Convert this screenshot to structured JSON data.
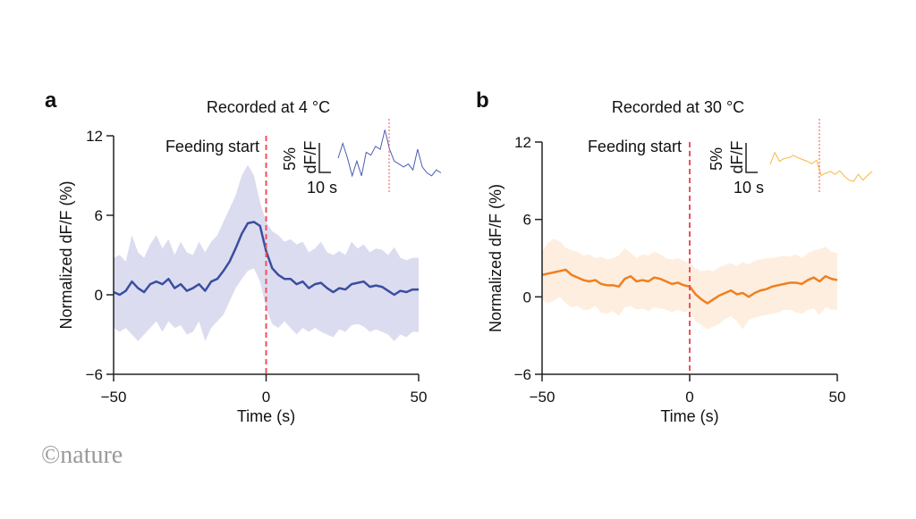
{
  "logo": "©nature",
  "colors": {
    "blue": "#3a4ea0",
    "blue_band": "#dcdcf0",
    "blue_inset": "#4a5cb0",
    "orange": "#f07f1e",
    "orange_band": "#fdeee0",
    "orange_inset": "#f5b840",
    "feeding_line": "#f0505a"
  },
  "chart_data": [
    {
      "panel": "a",
      "type": "line",
      "title": "Recorded at 4 °C",
      "xlabel": "Time (s)",
      "ylabel": "Normalized dF/F (%)",
      "xlim": [
        -50,
        50
      ],
      "ylim": [
        -6,
        12
      ],
      "xticks": [
        "−50",
        "0",
        "50"
      ],
      "yticks": [
        "12",
        "6",
        "0",
        "−6"
      ],
      "annotation": "Feeding start",
      "event_x": 0,
      "x": [
        -50,
        -48,
        -46,
        -44,
        -42,
        -40,
        -38,
        -36,
        -34,
        -32,
        -30,
        -28,
        -26,
        -24,
        -22,
        -20,
        -18,
        -16,
        -14,
        -12,
        -10,
        -8,
        -6,
        -4,
        -2,
        0,
        2,
        4,
        6,
        8,
        10,
        12,
        14,
        16,
        18,
        20,
        22,
        24,
        26,
        28,
        30,
        32,
        34,
        36,
        38,
        40,
        42,
        44,
        46,
        48,
        50
      ],
      "mean": [
        0.2,
        0.0,
        0.3,
        1.0,
        0.5,
        0.2,
        0.8,
        1.0,
        0.8,
        1.2,
        0.5,
        0.8,
        0.3,
        0.5,
        0.8,
        0.3,
        1.0,
        1.2,
        1.8,
        2.5,
        3.5,
        4.6,
        5.4,
        5.5,
        5.2,
        3.3,
        2.0,
        1.5,
        1.2,
        1.2,
        0.8,
        1.0,
        0.5,
        0.8,
        0.9,
        0.5,
        0.2,
        0.5,
        0.4,
        0.8,
        0.9,
        1.0,
        0.6,
        0.7,
        0.6,
        0.3,
        0.0,
        0.3,
        0.2,
        0.4,
        0.4
      ],
      "upper": [
        2.8,
        3.0,
        2.5,
        4.5,
        3.2,
        2.8,
        3.8,
        4.5,
        3.5,
        4.2,
        3.0,
        4.0,
        3.2,
        3.0,
        4.0,
        3.2,
        4.0,
        4.5,
        5.5,
        6.5,
        7.5,
        9.0,
        9.8,
        9.0,
        7.0,
        5.5,
        4.8,
        4.5,
        4.0,
        4.2,
        3.8,
        4.0,
        3.2,
        3.5,
        4.0,
        3.2,
        3.0,
        3.3,
        3.0,
        4.0,
        3.5,
        3.8,
        3.2,
        3.5,
        3.4,
        3.0,
        3.6,
        2.8,
        2.6,
        2.8,
        2.8
      ],
      "lower": [
        -2.5,
        -2.8,
        -2.5,
        -3.0,
        -3.5,
        -3.0,
        -2.5,
        -2.0,
        -2.8,
        -2.0,
        -2.5,
        -2.3,
        -3.0,
        -2.8,
        -2.0,
        -3.5,
        -2.5,
        -2.0,
        -1.5,
        -0.5,
        0.5,
        1.2,
        1.8,
        2.0,
        1.0,
        -1.0,
        -2.2,
        -2.5,
        -2.0,
        -2.5,
        -3.0,
        -2.5,
        -2.8,
        -2.5,
        -2.8,
        -3.0,
        -3.2,
        -2.6,
        -2.8,
        -2.3,
        -2.2,
        -2.4,
        -2.8,
        -2.6,
        -2.8,
        -3.0,
        -3.5,
        -3.0,
        -3.2,
        -2.8,
        -2.8
      ],
      "inset": {
        "scale_y_label": "5%",
        "scale_y_unit": "dF/F",
        "scale_x_label": "10 s",
        "event_t": 44,
        "t": [
          0,
          4,
          8,
          12,
          16,
          20,
          24,
          28,
          32,
          36,
          40,
          44,
          48,
          52,
          56,
          60,
          64,
          68,
          72,
          76,
          80,
          84,
          88
        ],
        "values": [
          5.0,
          7.5,
          5.0,
          2.0,
          4.5,
          2.0,
          6.0,
          5.5,
          7.0,
          6.5,
          9.8,
          6.5,
          4.5,
          4.0,
          3.5,
          4.0,
          3.0,
          6.5,
          3.5,
          2.5,
          2.0,
          3.0,
          2.5
        ]
      }
    },
    {
      "panel": "b",
      "type": "line",
      "title": "Recorded at 30 °C",
      "xlabel": "Time (s)",
      "ylabel": "Normalized dF/F (%)",
      "xlim": [
        -50,
        50
      ],
      "ylim": [
        -6,
        12
      ],
      "xticks": [
        "−50",
        "0",
        "50"
      ],
      "yticks": [
        "12",
        "6",
        "0",
        "−6"
      ],
      "annotation": "Feeding start",
      "event_x": 0,
      "x": [
        -50,
        -48,
        -46,
        -44,
        -42,
        -40,
        -38,
        -36,
        -34,
        -32,
        -30,
        -28,
        -26,
        -24,
        -22,
        -20,
        -18,
        -16,
        -14,
        -12,
        -10,
        -8,
        -6,
        -4,
        -2,
        0,
        2,
        4,
        6,
        8,
        10,
        12,
        14,
        16,
        18,
        20,
        22,
        24,
        26,
        28,
        30,
        32,
        34,
        36,
        38,
        40,
        42,
        44,
        46,
        48,
        50
      ],
      "mean": [
        1.7,
        1.8,
        1.9,
        2.0,
        2.1,
        1.7,
        1.5,
        1.3,
        1.2,
        1.3,
        1.0,
        0.9,
        0.9,
        0.8,
        1.4,
        1.6,
        1.2,
        1.3,
        1.2,
        1.5,
        1.4,
        1.2,
        1.0,
        1.1,
        0.9,
        0.8,
        0.2,
        -0.2,
        -0.5,
        -0.2,
        0.1,
        0.3,
        0.5,
        0.2,
        0.3,
        0.0,
        0.3,
        0.5,
        0.6,
        0.8,
        0.9,
        1.0,
        1.1,
        1.1,
        1.0,
        1.3,
        1.5,
        1.2,
        1.6,
        1.4,
        1.3
      ],
      "upper": [
        3.5,
        4.2,
        4.5,
        4.3,
        3.8,
        3.6,
        3.5,
        3.2,
        3.3,
        3.0,
        3.1,
        2.9,
        3.0,
        3.2,
        3.8,
        3.4,
        3.0,
        3.3,
        3.2,
        3.5,
        3.3,
        3.0,
        2.9,
        3.0,
        2.8,
        2.6,
        2.2,
        2.0,
        2.1,
        2.0,
        2.3,
        2.5,
        2.6,
        2.4,
        2.7,
        2.5,
        2.8,
        2.9,
        3.0,
        3.0,
        3.1,
        3.2,
        3.1,
        3.3,
        3.0,
        3.4,
        3.6,
        3.7,
        3.9,
        3.5,
        3.4
      ],
      "lower": [
        -0.2,
        -0.5,
        -0.3,
        0.0,
        -0.5,
        -0.8,
        -0.7,
        -1.0,
        -1.0,
        -0.7,
        -1.2,
        -1.3,
        -1.1,
        -1.5,
        -0.8,
        -0.7,
        -1.0,
        -0.9,
        -1.1,
        -0.8,
        -0.9,
        -1.0,
        -1.2,
        -1.0,
        -1.2,
        -1.1,
        -1.9,
        -2.2,
        -2.5,
        -2.3,
        -2.1,
        -1.7,
        -1.5,
        -1.9,
        -2.5,
        -1.8,
        -1.6,
        -1.5,
        -1.4,
        -1.3,
        -1.2,
        -1.0,
        -1.0,
        -1.2,
        -1.3,
        -1.0,
        -0.9,
        -1.4,
        -0.8,
        -1.0,
        -1.0
      ],
      "inset": {
        "scale_y_label": "5%",
        "scale_y_unit": "dF/F",
        "scale_x_label": "10 s",
        "event_t": 42,
        "t": [
          0,
          4,
          8,
          12,
          16,
          20,
          24,
          28,
          32,
          36,
          40,
          44,
          48,
          52,
          56,
          60,
          64,
          68,
          72,
          76,
          80,
          84,
          88
        ],
        "values": [
          3.5,
          5.5,
          4.0,
          4.5,
          4.6,
          5.0,
          4.6,
          4.3,
          4.0,
          3.6,
          4.2,
          1.6,
          2.0,
          2.3,
          1.8,
          2.4,
          1.5,
          0.8,
          0.6,
          1.8,
          0.8,
          1.6,
          2.3
        ]
      }
    }
  ]
}
